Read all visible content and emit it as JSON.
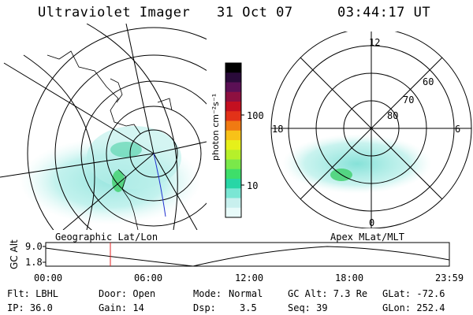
{
  "header": {
    "instrument": "Ultraviolet Imager",
    "date": "31 Oct 07",
    "time": "03:44:17 UT"
  },
  "colorbar": {
    "unit_label": "photon cm⁻²s⁻¹",
    "ticks": [
      "100",
      "10"
    ],
    "colors": [
      "#000000",
      "#2a0b3a",
      "#5b1055",
      "#8e1040",
      "#c41020",
      "#e23218",
      "#f07a12",
      "#f8c218",
      "#e6f01a",
      "#b6f02a",
      "#7ae84a",
      "#3ede6a",
      "#28d6a6",
      "#7be6d4",
      "#c8f0ee",
      "#e8fbfa"
    ]
  },
  "polar_plot": {
    "lat_labels": [
      "80",
      "70",
      "60"
    ],
    "mlt_labels": [
      "12",
      "18",
      "6",
      "0"
    ],
    "caption": "Apex MLat/MLT"
  },
  "geo_plot": {
    "caption": "Geographic Lat/Lon"
  },
  "altitude_panel": {
    "y_axis_label": "GC Alt",
    "y_ticks": [
      "9.0",
      "1.8"
    ],
    "x_ticks": [
      "00:00",
      "06:00",
      "12:00",
      "18:00",
      "23:59"
    ],
    "marker_color": "#e02020"
  },
  "info": {
    "filter": "Flt: LBHL",
    "door": "Door: Open",
    "mode_label": "Mode:",
    "mode_value": "Normal",
    "gc_alt": "GC Alt: 7.3 Re",
    "glat": "GLat: -72.6",
    "ip": "IP: 36.0",
    "gain": "Gain: 14",
    "dsp_label": "Dsp:",
    "dsp_value": "3.5",
    "seq": "Seq: 39",
    "glon": "GLon: 252.4"
  }
}
